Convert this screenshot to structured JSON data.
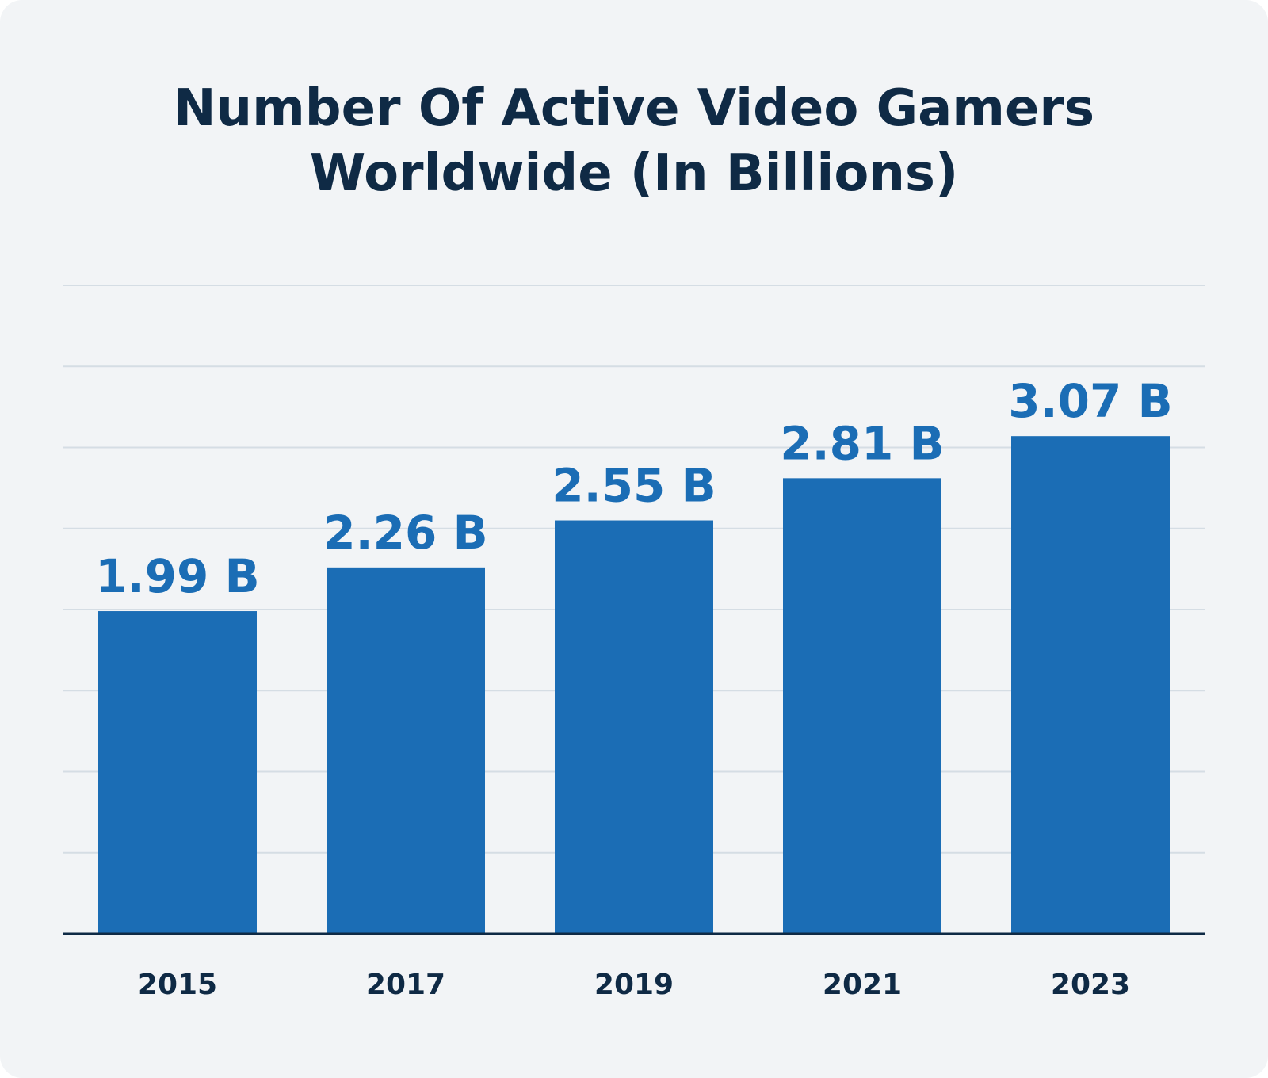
{
  "chart_data": {
    "type": "bar",
    "title_lines": [
      "Number Of Active Video Gamers",
      "Worldwide (In Billions)"
    ],
    "categories": [
      "2015",
      "2017",
      "2019",
      "2021",
      "2023"
    ],
    "values": [
      1.99,
      2.26,
      2.55,
      2.81,
      3.07
    ],
    "value_labels": [
      "1.99 B",
      "2.26 B",
      "2.55 B",
      "2.81 B",
      "3.07 B"
    ],
    "xlabel": "",
    "ylabel": "",
    "ylim": [
      0,
      4
    ],
    "grid": true,
    "colors": {
      "bar": "#1b6db5",
      "axis": "#0f2a45",
      "grid": "#d5dde4",
      "background": "#f2f4f6"
    }
  }
}
